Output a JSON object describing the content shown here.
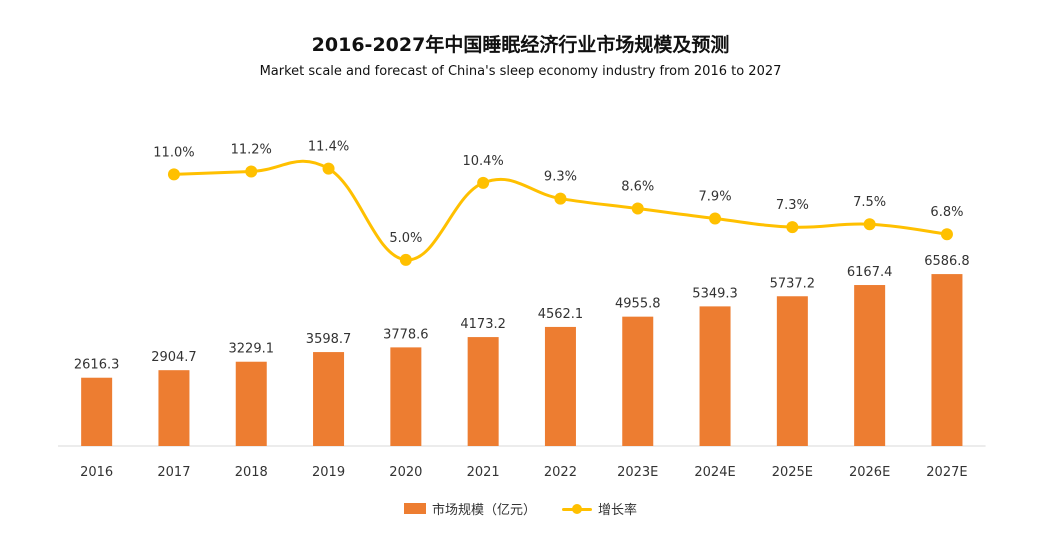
{
  "title": "2016-2027年中国睡眠经济行业市场规模及预测",
  "subtitle": "Market scale and forecast of China's sleep economy industry from 2016 to 2027",
  "chart_data": {
    "type": "bar",
    "categories": [
      "2016",
      "2017",
      "2018",
      "2019",
      "2020",
      "2021",
      "2022",
      "2023E",
      "2024E",
      "2025E",
      "2026E",
      "2027E"
    ],
    "series": [
      {
        "name": "市场规模（亿元）",
        "type": "bar",
        "values": [
          2616.3,
          2904.7,
          3229.1,
          3598.7,
          3778.6,
          4173.2,
          4562.1,
          4955.8,
          5349.3,
          5737.2,
          6167.4,
          6586.8
        ],
        "labels": [
          "2616.3",
          "2904.7",
          "3229.1",
          "3598.7",
          "3778.6",
          "4173.2",
          "4562.1",
          "4955.8",
          "5349.3",
          "5737.2",
          "6167.4",
          "6586.8"
        ]
      },
      {
        "name": "增长率",
        "type": "line",
        "values": [
          null,
          11.0,
          11.2,
          11.4,
          5.0,
          10.4,
          9.3,
          8.6,
          7.9,
          7.3,
          7.5,
          6.8
        ],
        "labels": [
          "",
          "11.0%",
          "11.2%",
          "11.4%",
          "5.0%",
          "10.4%",
          "9.3%",
          "8.6%",
          "7.9%",
          "7.3%",
          "7.5%",
          "6.8%"
        ]
      }
    ],
    "bar_color": "#ED7D31",
    "line_color": "#FFC000",
    "legend_position": "bottom",
    "grid": false
  }
}
